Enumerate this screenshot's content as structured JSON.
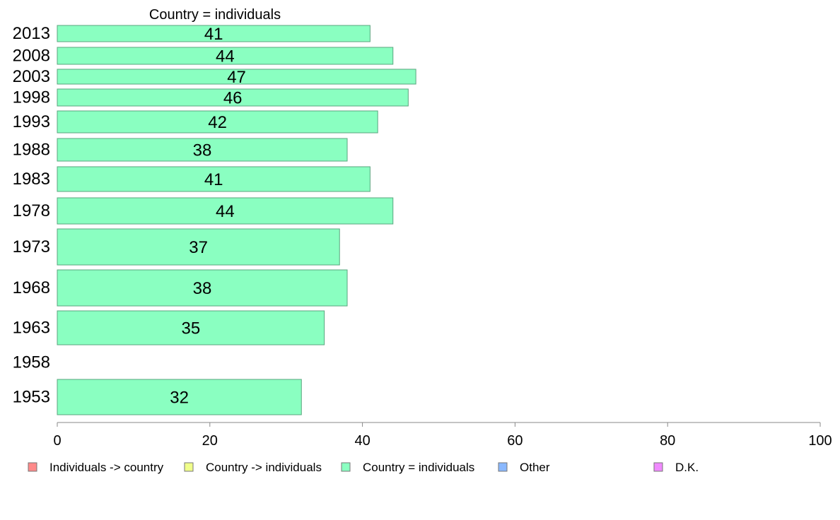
{
  "chart_data": {
    "type": "bar",
    "orientation": "horizontal",
    "title": "Country = individuals",
    "categories": [
      "2013",
      "2008",
      "2003",
      "1998",
      "1993",
      "1988",
      "1983",
      "1978",
      "1973",
      "1968",
      "1963",
      "1958",
      "1953"
    ],
    "series": [
      {
        "name": "Country = individuals",
        "color": "#8affc1",
        "values": [
          41,
          44,
          47,
          46,
          42,
          38,
          41,
          44,
          37,
          38,
          35,
          null,
          32
        ]
      }
    ],
    "data_labels": [
      "41",
      "44",
      "47",
      "46",
      "42",
      "38",
      "41",
      "44",
      "37",
      "38",
      "35",
      "",
      "32"
    ],
    "xlim": [
      0,
      100
    ],
    "x_ticks": [
      "0",
      "20",
      "40",
      "60",
      "80",
      "100"
    ],
    "xlabel": "",
    "ylabel": "",
    "grid": false,
    "legend_position": "bottom",
    "legend": [
      {
        "label": "Individuals -> country",
        "color": "#ff8a8a"
      },
      {
        "label": "Country -> individuals",
        "color": "#f0ff8a"
      },
      {
        "label": "Country = individuals",
        "color": "#8affc1"
      },
      {
        "label": "Other",
        "color": "#8ab8ff"
      },
      {
        "label": "D.K.",
        "color": "#f08aff"
      }
    ]
  }
}
